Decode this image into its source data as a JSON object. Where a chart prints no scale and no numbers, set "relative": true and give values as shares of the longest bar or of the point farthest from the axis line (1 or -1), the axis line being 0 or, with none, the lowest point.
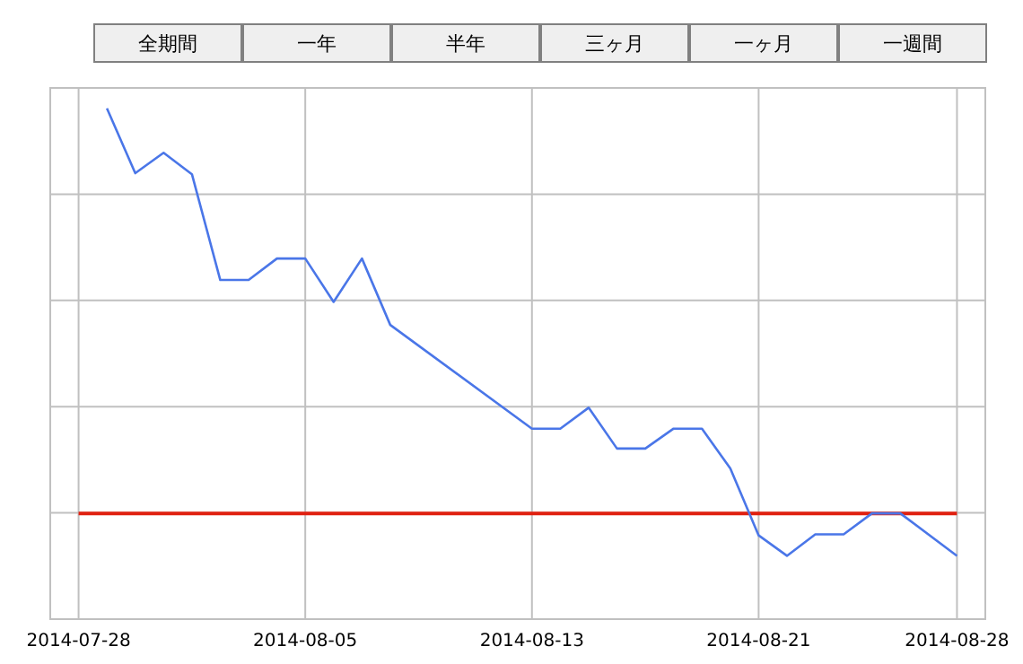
{
  "chart_data": {
    "type": "line",
    "relative": true,
    "grid": true,
    "annotations": [
      "全期間",
      "一年",
      "半年",
      "三ヶ月",
      "一ヶ月",
      "一週間"
    ],
    "xlim": [
      "2014-07-27",
      "2014-08-29"
    ],
    "xticks": [
      "2014-07-28",
      "2014-08-05",
      "2014-08-13",
      "2014-08-21",
      "2014-08-28"
    ],
    "series": [
      {
        "color": "#4a76e8",
        "x": [
          "2014-07-29",
          "2014-07-30",
          "2014-07-31",
          "2014-08-01",
          "2014-08-02",
          "2014-08-03",
          "2014-08-04",
          "2014-08-05",
          "2014-08-06",
          "2014-08-07",
          "2014-08-08",
          "2014-08-13",
          "2014-08-14",
          "2014-08-15",
          "2014-08-16",
          "2014-08-17",
          "2014-08-18",
          "2014-08-19",
          "2014-08-20",
          "2014-08-21",
          "2014-08-22",
          "2014-08-23",
          "2014-08-24",
          "2014-08-25",
          "2014-08-26",
          "2014-08-28"
        ],
        "values": [
          1.0,
          0.873,
          0.913,
          0.871,
          0.664,
          0.664,
          0.706,
          0.706,
          0.621,
          0.706,
          0.576,
          0.373,
          0.373,
          0.414,
          0.334,
          0.334,
          0.373,
          0.373,
          0.295,
          0.164,
          0.124,
          0.166,
          0.166,
          0.207,
          0.207,
          0.124
        ]
      }
    ],
    "ref_lines": [
      {
        "axis": "y",
        "value": 0.207,
        "color": "#e02010"
      }
    ]
  }
}
